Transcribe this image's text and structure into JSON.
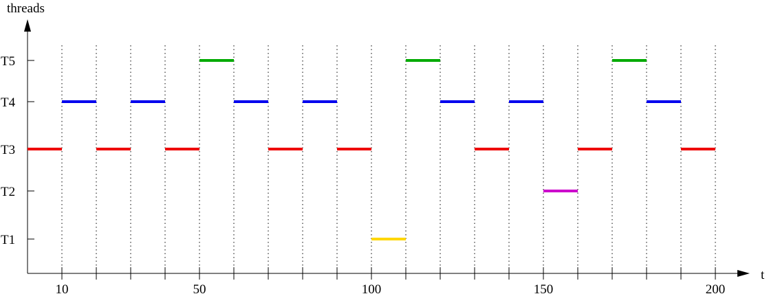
{
  "chart_data": {
    "type": "timeline",
    "ylabel": "threads",
    "xlabel": "t",
    "x_tick_labels": [
      {
        "value": 10,
        "label": "10"
      },
      {
        "value": 50,
        "label": "50"
      },
      {
        "value": 100,
        "label": "100"
      },
      {
        "value": 150,
        "label": "150"
      },
      {
        "value": 200,
        "label": "200"
      }
    ],
    "x_ticks": [
      10,
      20,
      30,
      40,
      50,
      60,
      70,
      80,
      90,
      100,
      110,
      120,
      130,
      140,
      150,
      160,
      170,
      180,
      190,
      200
    ],
    "x_range": [
      0,
      207
    ],
    "threads": [
      {
        "name": "T1",
        "color": "#ffd700"
      },
      {
        "name": "T2",
        "color": "#cc00cc"
      },
      {
        "name": "T3",
        "color": "#ee0000"
      },
      {
        "name": "T4",
        "color": "#0000ee"
      },
      {
        "name": "T5",
        "color": "#00aa00"
      }
    ],
    "segments": [
      {
        "thread": "T3",
        "start": 0,
        "end": 10
      },
      {
        "thread": "T4",
        "start": 10,
        "end": 20
      },
      {
        "thread": "T3",
        "start": 20,
        "end": 30
      },
      {
        "thread": "T4",
        "start": 30,
        "end": 40
      },
      {
        "thread": "T3",
        "start": 40,
        "end": 50
      },
      {
        "thread": "T5",
        "start": 50,
        "end": 60
      },
      {
        "thread": "T4",
        "start": 60,
        "end": 70
      },
      {
        "thread": "T3",
        "start": 70,
        "end": 80
      },
      {
        "thread": "T4",
        "start": 80,
        "end": 90
      },
      {
        "thread": "T3",
        "start": 90,
        "end": 100
      },
      {
        "thread": "T1",
        "start": 100,
        "end": 110
      },
      {
        "thread": "T5",
        "start": 110,
        "end": 120
      },
      {
        "thread": "T4",
        "start": 120,
        "end": 130
      },
      {
        "thread": "T3",
        "start": 130,
        "end": 140
      },
      {
        "thread": "T4",
        "start": 140,
        "end": 150
      },
      {
        "thread": "T2",
        "start": 150,
        "end": 160
      },
      {
        "thread": "T3",
        "start": 160,
        "end": 170
      },
      {
        "thread": "T5",
        "start": 170,
        "end": 180
      },
      {
        "thread": "T4",
        "start": 180,
        "end": 190
      },
      {
        "thread": "T3",
        "start": 190,
        "end": 200
      }
    ]
  }
}
